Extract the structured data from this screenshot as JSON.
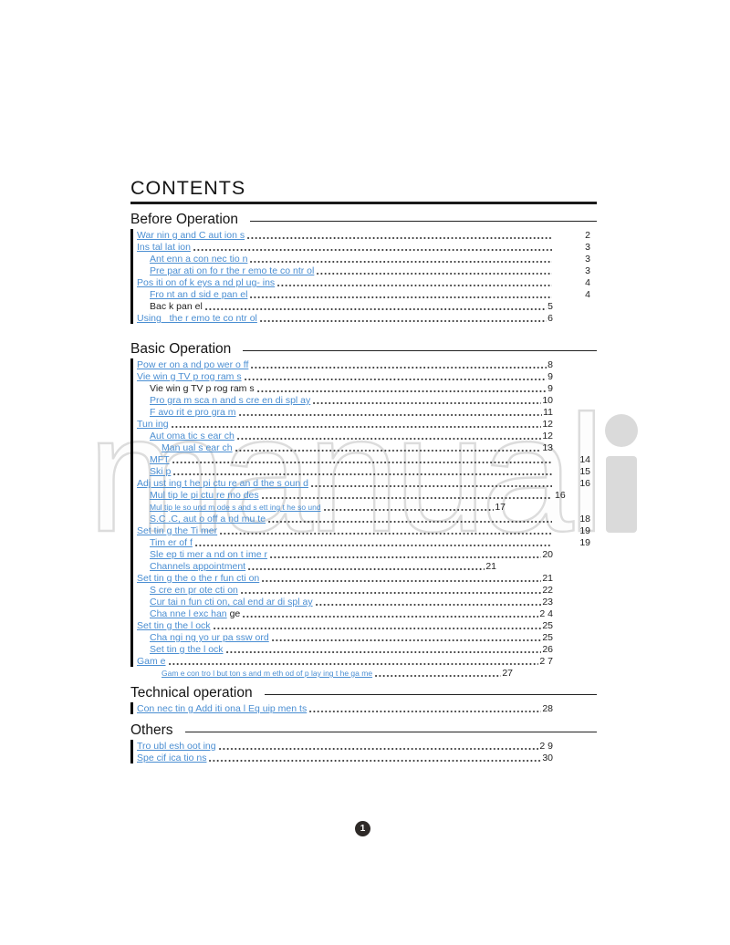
{
  "title": "CONTENTS",
  "watermark": {
    "outline": "manual",
    "solid": "i"
  },
  "footer": {
    "page_indicator": "1"
  },
  "link_color": "#4a8ed2",
  "sections": [
    {
      "name": "Before Operation",
      "entries": [
        {
          "label": "War nin g and C aut ion s",
          "page": "2",
          "indent": 0,
          "link": true,
          "col": true
        },
        {
          "label": "Ins tal lat ion",
          "page": "3",
          "indent": 0,
          "link": true,
          "col": true
        },
        {
          "label": "Ant enn a con nec tio n",
          "page": "3",
          "indent": 1,
          "link": true,
          "col": true
        },
        {
          "label": "Pre par ati on fo r the r emo te co ntr ol",
          "page": "3",
          "indent": 1,
          "link": true,
          "col": true
        },
        {
          "label": "Pos iti on of k eys a nd pl ug- ins",
          "page": "4",
          "indent": 0,
          "link": true,
          "col": true
        },
        {
          "label": "Fro nt an d sid e pan el",
          "page": "4",
          "indent": 1,
          "link": true,
          "col": true
        },
        {
          "label": "Bac k pan el",
          "page": "5",
          "indent": 1,
          "link": false
        },
        {
          "label": "Using   the r emo te co ntr ol",
          "page": "6",
          "indent": 0,
          "link": true
        }
      ]
    },
    {
      "name": "Basic Operation",
      "entries": [
        {
          "label": "Pow er on a nd po wer o ff",
          "page": "8",
          "indent": 0,
          "link": true
        },
        {
          "label": "Vie win g TV p rog ram s",
          "page": "9",
          "indent": 0,
          "link": true
        },
        {
          "label": "Vie win g TV p rog ram s",
          "page": "9",
          "indent": 1,
          "link": false
        },
        {
          "label": "Pro gra m sca n and s cre en di spl ay",
          "page": "10",
          "indent": 1,
          "link": true
        },
        {
          "label": "F avo rit e pro gra m",
          "page": "11",
          "indent": 1,
          "link": true
        },
        {
          "label": "Tun ing",
          "page": "12",
          "indent": 0,
          "link": true
        },
        {
          "label": "Aut oma tic s ear ch",
          "page": "12",
          "indent": 1,
          "link": true
        },
        {
          "label": "Man ual s ear ch",
          "page": "13",
          "indent": 2,
          "link": true
        },
        {
          "label": "MFT",
          "page": "14",
          "indent": 1,
          "link": true,
          "col": true
        },
        {
          "label": "Ski p",
          "page": "15",
          "indent": 1,
          "link": true,
          "col": true
        },
        {
          "label": "Adj ust ing t he pi ctu re an d the s oun d",
          "page": "16",
          "indent": 0,
          "link": true,
          "col": true
        },
        {
          "label": "Mul tip le pi ctu re mo des",
          "page": "16",
          "indent": 1,
          "link": true,
          "col": true,
          "col_left": true
        },
        {
          "label": "Mul tip le so und m ode s and s ett ing t he so und",
          "page": "17",
          "indent": 1,
          "link": true,
          "small": true,
          "pad": 52
        },
        {
          "label": "S.C .C, aut o off a nd mu te",
          "page": "18",
          "indent": 1,
          "link": true,
          "col": true
        },
        {
          "label": "Set tin g the Ti mer",
          "page": "19",
          "indent": 0,
          "link": true,
          "col": true
        },
        {
          "label": "Tim er of f",
          "page": "19",
          "indent": 1,
          "link": true,
          "col": true
        },
        {
          "label": "Sle ep ti mer a nd on t ime r",
          "page": "20",
          "indent": 1,
          "link": true
        },
        {
          "label": "Channels appointment",
          "page": "21",
          "indent": 1,
          "link": true,
          "pad": 62
        },
        {
          "label": "Set tin g the o the r fun cti on",
          "page": "21",
          "indent": 0,
          "link": true
        },
        {
          "label": "S cre en pr ote cti on",
          "page": "22",
          "indent": 1,
          "link": true
        },
        {
          "label": "Cur tai n fun cti on, cal end ar di spl ay",
          "page": "23",
          "indent": 1,
          "link": true
        },
        {
          "label": "Cha nne l exc han",
          "suffix": " ge",
          "page": "2 4",
          "indent": 1,
          "link": true
        },
        {
          "label": "Set tin g the l ock",
          "page": "25",
          "indent": 0,
          "link": true
        },
        {
          "label": "Cha ngi ng yo ur pa ssw ord",
          "page": "25",
          "indent": 1,
          "link": true
        },
        {
          "label": "Set tin g the l ock",
          "page": "26",
          "indent": 1,
          "link": true
        },
        {
          "label": "Gam e",
          "page": "2 7",
          "indent": 0,
          "link": true
        },
        {
          "label": "Gam e con tro l but ton s and m eth od of p lay ing t he ga me",
          "page": "27",
          "indent": 2,
          "link": true,
          "small": true,
          "pad": 44,
          "bar": false
        }
      ]
    },
    {
      "name": "Technical operation",
      "entries": [
        {
          "label": "Con nec tin g Add iti ona l Eq uip men ts",
          "page": "28",
          "indent": 0,
          "link": true
        }
      ]
    },
    {
      "name": "Others",
      "entries": [
        {
          "label": "Tro ubl esh oot ing",
          "page": "2 9",
          "indent": 0,
          "link": true
        },
        {
          "label": "Spe cif ica tio ns",
          "page": "30",
          "indent": 0,
          "link": true
        }
      ]
    }
  ]
}
